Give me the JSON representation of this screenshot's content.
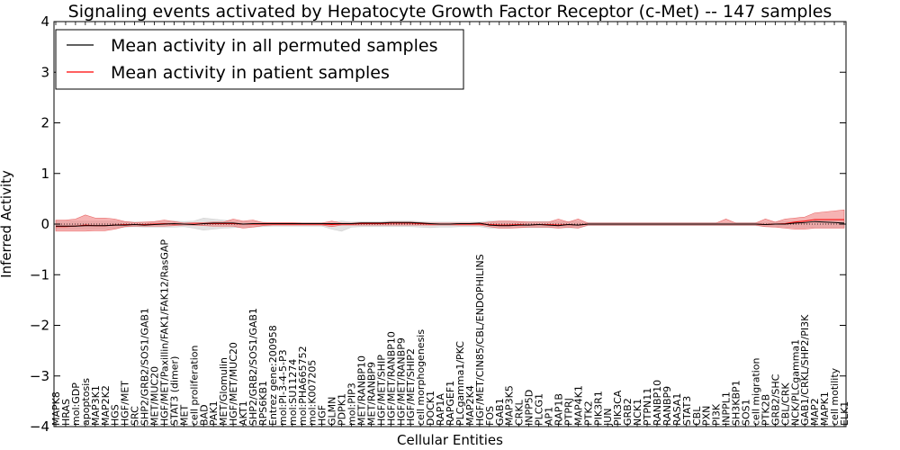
{
  "chart_data": {
    "type": "line",
    "title": "Signaling events activated by Hepatocyte Growth Factor Receptor (c-Met) -- 147 samples",
    "xlabel": "Cellular Entities",
    "ylabel": "Inferred Activity",
    "ylim": [
      -4,
      4
    ],
    "yticks": [
      -4,
      -3,
      -2,
      -1,
      0,
      1,
      2,
      3,
      4
    ],
    "ytick_labels": [
      "−4",
      "−3",
      "−2",
      "−1",
      "0",
      "1",
      "2",
      "3",
      "4"
    ],
    "grid": false,
    "legend_position": "top-left",
    "categories": [
      "MAPK8",
      "HRAS",
      "mol:GDP",
      "apoptosis",
      "MAP3K1",
      "MAP2K2",
      "HGS",
      "HGF/MET",
      "SRC",
      "SHP2/GRB2/SOS1/GAB1",
      "MET/MUC20",
      "HGF/MET/Paxillin/FAK1/FAK12/RasGAP",
      "STAT3 (dimer)",
      "MET",
      "cell proliferation",
      "BAD",
      "PAK1",
      "MET/Glomulin",
      "HGF/MET/MUC20",
      "AKT1",
      "SHP2/GRB2/SOS1/GAB1",
      "RPS6KB1",
      "Entrez gene:200958",
      "mol:PI-3-4-5-P3",
      "mol:SU11274",
      "mol:PHA665752",
      "mol:K007205",
      "HGF",
      "GLMN",
      "PDPK1",
      "mol:PIP3",
      "MET/RANBP10",
      "MET/RANBP9",
      "HGF/MET/SHIP",
      "HGF/MET/RANBP10",
      "HGF/MET/RANBP9",
      "HGF/MET/SHIP2",
      "cell morphogenesis",
      "DOCK1",
      "RAP1A",
      "RAPGEF1",
      "PLCgamma1/PKC",
      "MAP2K4",
      "HGF/MET/CIN85/CBL/ENDOPHILINS",
      "FOS",
      "GAB1",
      "MAP3K5",
      "CRKL",
      "INPP5D",
      "PLCG1",
      "AP1",
      "RAP1B",
      "PTPRJ",
      "MAP4K1",
      "PTK2",
      "PIK3R1",
      "JUN",
      "PIK3CA",
      "GRB2",
      "NCK1",
      "PTPN11",
      "RANBP10",
      "RANBP9",
      "RASA1",
      "STAT3",
      "CBL",
      "PXN",
      "PI3K",
      "INPPL1",
      "SH3KBP1",
      "SOS1",
      "cell migration",
      "PTK2B",
      "GRB2/SHC",
      "CBL/CRK",
      "NCK/PLCgamma1",
      "GAB1/CRKL/SHP2/PI3K",
      "MAP2",
      "MAPK1",
      "cell motility",
      "ELK1"
    ],
    "series": [
      {
        "name": "Mean activity in all permuted samples",
        "color": "#000000",
        "values": [
          -0.04,
          -0.04,
          -0.04,
          -0.03,
          -0.03,
          -0.03,
          -0.02,
          -0.02,
          -0.01,
          -0.02,
          -0.01,
          0.0,
          0.01,
          0.0,
          -0.01,
          0.01,
          0.02,
          0.02,
          0.02,
          0.0,
          0.01,
          0.01,
          0.01,
          0.01,
          0.01,
          0.01,
          0.01,
          0.01,
          0.01,
          0.01,
          0.01,
          0.02,
          0.02,
          0.02,
          0.03,
          0.03,
          0.03,
          0.02,
          0.01,
          0.0,
          0.0,
          0.01,
          0.01,
          0.02,
          -0.02,
          -0.03,
          -0.03,
          -0.02,
          -0.02,
          -0.01,
          -0.02,
          -0.03,
          -0.01,
          -0.02,
          0.0,
          0.0,
          0.0,
          0.0,
          0.0,
          0.0,
          0.0,
          0.0,
          0.0,
          0.0,
          0.0,
          0.0,
          0.0,
          0.0,
          0.0,
          0.0,
          0.0,
          0.0,
          -0.01,
          0.0,
          0.0,
          0.02,
          0.03,
          0.05,
          0.04,
          0.03,
          0.02
        ]
      },
      {
        "name": "Mean activity in patient samples",
        "color": "#ff0000",
        "values": [
          -0.05,
          -0.05,
          -0.04,
          -0.02,
          -0.03,
          -0.03,
          -0.02,
          -0.01,
          -0.01,
          -0.01,
          0.0,
          0.01,
          0.0,
          0.0,
          0.0,
          0.01,
          0.01,
          0.01,
          0.01,
          0.0,
          0.0,
          0.0,
          0.0,
          0.0,
          0.0,
          0.0,
          0.0,
          0.0,
          -0.01,
          0.0,
          0.0,
          0.01,
          0.01,
          0.01,
          0.02,
          0.02,
          0.02,
          0.01,
          0.0,
          0.0,
          0.0,
          0.0,
          0.0,
          0.0,
          -0.01,
          -0.02,
          -0.02,
          -0.01,
          -0.02,
          -0.01,
          -0.01,
          -0.02,
          -0.01,
          -0.02,
          0.0,
          0.0,
          0.0,
          0.0,
          0.0,
          0.0,
          0.0,
          0.0,
          0.0,
          0.0,
          0.0,
          0.0,
          0.0,
          0.0,
          0.0,
          0.0,
          0.0,
          0.0,
          -0.01,
          0.0,
          0.01,
          0.04,
          0.06,
          0.09,
          0.09,
          0.09,
          0.09
        ]
      }
    ],
    "patient_band": {
      "color": "#f08080",
      "upper": [
        0.08,
        0.08,
        0.1,
        0.18,
        0.12,
        0.12,
        0.1,
        0.05,
        0.03,
        0.04,
        0.05,
        0.08,
        0.05,
        0.02,
        0.03,
        0.03,
        0.04,
        0.04,
        0.1,
        0.06,
        0.08,
        0.03,
        0.03,
        0.03,
        0.03,
        0.02,
        0.02,
        0.02,
        0.06,
        0.02,
        0.02,
        0.03,
        0.03,
        0.03,
        0.04,
        0.04,
        0.04,
        0.03,
        0.02,
        0.02,
        0.02,
        0.02,
        0.02,
        0.02,
        0.04,
        0.06,
        0.06,
        0.05,
        0.04,
        0.04,
        0.04,
        0.1,
        0.04,
        0.1,
        0.02,
        0.02,
        0.02,
        0.02,
        0.02,
        0.02,
        0.02,
        0.02,
        0.02,
        0.02,
        0.02,
        0.02,
        0.02,
        0.02,
        0.1,
        0.02,
        0.02,
        0.02,
        0.1,
        0.04,
        0.1,
        0.12,
        0.14,
        0.22,
        0.24,
        0.26,
        0.28
      ],
      "lower": [
        -0.14,
        -0.14,
        -0.14,
        -0.14,
        -0.13,
        -0.13,
        -0.1,
        -0.05,
        -0.04,
        -0.04,
        -0.04,
        -0.04,
        -0.03,
        -0.02,
        -0.02,
        -0.03,
        -0.04,
        -0.04,
        -0.04,
        -0.08,
        -0.06,
        -0.03,
        -0.02,
        -0.02,
        -0.02,
        -0.02,
        -0.02,
        -0.02,
        -0.05,
        -0.02,
        -0.02,
        -0.02,
        -0.02,
        -0.02,
        -0.02,
        -0.02,
        -0.02,
        -0.02,
        -0.02,
        -0.02,
        -0.02,
        -0.02,
        -0.02,
        -0.02,
        -0.05,
        -0.08,
        -0.08,
        -0.07,
        -0.06,
        -0.06,
        -0.06,
        -0.08,
        -0.06,
        -0.08,
        -0.02,
        -0.02,
        -0.02,
        -0.02,
        -0.02,
        -0.02,
        -0.02,
        -0.02,
        -0.02,
        -0.02,
        -0.02,
        -0.02,
        -0.02,
        -0.02,
        -0.02,
        -0.02,
        -0.02,
        -0.02,
        -0.05,
        -0.06,
        -0.08,
        -0.1,
        -0.1,
        -0.08,
        -0.08,
        -0.08,
        -0.08
      ]
    },
    "permuted_band": {
      "color": "#b0b0b0",
      "upper": [
        0.06,
        0.06,
        0.06,
        0.06,
        0.06,
        0.06,
        0.06,
        0.05,
        0.04,
        0.04,
        0.04,
        0.05,
        0.06,
        0.05,
        0.06,
        0.12,
        0.1,
        0.08,
        0.06,
        0.05,
        0.05,
        0.04,
        0.03,
        0.03,
        0.03,
        0.03,
        0.03,
        0.03,
        0.04,
        0.06,
        0.04,
        0.05,
        0.05,
        0.05,
        0.06,
        0.06,
        0.06,
        0.05,
        0.04,
        0.04,
        0.04,
        0.04,
        0.04,
        0.04,
        0.06,
        0.06,
        0.06,
        0.05,
        0.05,
        0.05,
        0.05,
        0.05,
        0.05,
        0.05,
        0.03,
        0.03,
        0.03,
        0.03,
        0.03,
        0.03,
        0.03,
        0.03,
        0.03,
        0.03,
        0.03,
        0.03,
        0.03,
        0.03,
        0.03,
        0.03,
        0.03,
        0.03,
        0.04,
        0.04,
        0.05,
        0.06,
        0.06,
        0.08,
        0.08,
        0.08,
        0.08
      ],
      "lower": [
        -0.1,
        -0.1,
        -0.1,
        -0.1,
        -0.1,
        -0.1,
        -0.08,
        -0.06,
        -0.05,
        -0.06,
        -0.06,
        -0.06,
        -0.06,
        -0.05,
        -0.08,
        -0.12,
        -0.1,
        -0.08,
        -0.07,
        -0.06,
        -0.06,
        -0.05,
        -0.04,
        -0.04,
        -0.04,
        -0.04,
        -0.04,
        -0.04,
        -0.1,
        -0.14,
        -0.06,
        -0.05,
        -0.05,
        -0.05,
        -0.05,
        -0.05,
        -0.05,
        -0.06,
        -0.07,
        -0.06,
        -0.06,
        -0.05,
        -0.05,
        -0.05,
        -0.08,
        -0.08,
        -0.08,
        -0.07,
        -0.07,
        -0.07,
        -0.07,
        -0.08,
        -0.07,
        -0.08,
        -0.03,
        -0.03,
        -0.03,
        -0.03,
        -0.03,
        -0.03,
        -0.03,
        -0.03,
        -0.03,
        -0.03,
        -0.03,
        -0.03,
        -0.03,
        -0.03,
        -0.03,
        -0.03,
        -0.03,
        -0.03,
        -0.05,
        -0.05,
        -0.06,
        -0.07,
        -0.07,
        -0.07,
        -0.07,
        -0.07,
        -0.07
      ]
    }
  }
}
